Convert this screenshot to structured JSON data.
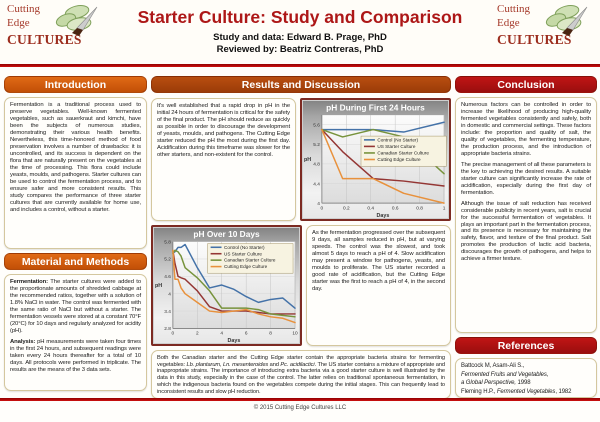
{
  "header": {
    "title": "Starter Culture: Study and Comparison",
    "subtitle1": "Study and data: Edward B. Prage, PhD",
    "subtitle2": "Reviewed by: Beatriz Contreras, PhD",
    "logo": {
      "word1": "Cutting",
      "word2": "Edge",
      "word3": "CULTURES"
    }
  },
  "left": {
    "intro_header": "Introduction",
    "intro_text": "Fermentation is a traditional process used to preserve vegetables. Well-known fermented vegetables, such as sauerkraut and kimchi, have been the subjects of numerous studies, demonstrating their various health benefits. Nevertheless, this time-honored method of food preservation involves a number of drawbacks: it is uncontrolled, and its success is dependent on the flora that are naturally present on the vegetables at the time of processing. This flora could include yeasts, moulds, and pathogens. Starter cultures can be used to control the fermentation process, and to ensure safer and more consistent results. This study compares the performance of three starter cultures that are currently available for home use, and includes a control, without a starter.",
    "methods_header": "Material and Methods",
    "fermentation_label": "Fermentation:",
    "fermentation_text": " The starter cultures were added to the proportionate amounts of shredded cabbage at the recommended ratios, together with a solution of 1.8% NaCl in water. The control was fermented with the same ratio of NaCl but without a starter. The fermentation vessels were stored at a constant 70°F (20°C) for 10 days and regularly analyzed for acidity (pH).",
    "analysis_label": "Analysis:",
    "analysis_text": " pH measurements were taken four times in the first 24 hours, and subsequent readings were taken every 24 hours thereafter for a total of 10 days. All protocols were performed in triplicate. The results are the means of the 3 data sets."
  },
  "middle": {
    "header": "Results and Discussion",
    "box1": "It's well established that a rapid drop in pH in the initial 24 hours of fermentation is critical for the safety of the final product. The pH should reduce as quickly as possible in order to discourage the development of yeasts, moulds, and pathogens. The Cutting Edge starter reduced the pH the most during the first day. Acidification during this timeframe was slower for the other starters, and non-existent for the control.",
    "box2": "As the fermentation progressed over the subsequent 9 days, all samples reduced in pH, but at varying speeds. The control was the slowest, and took almost 5 days to reach a pH of 4. Slow acidification may present a window for pathogens, yeasts, and moulds to proliferate. The US starter recorded a good rate of acidification, but the Cutting Edge starter was the first to reach a pH of 4, in the second day.",
    "bottom": {
      "p1": "Both the Canadian starter and the Cutting Edge starter contain the appropriate bacteria strains for fermenting vegetables: ",
      "i1": "Lb. plantarum, Ln. mesenteroides",
      "p2": " and ",
      "i2": "Pc. acidilactici",
      "p3": ". The US starter contains a mixture of appropriate and inappropriate strains. The importance of introducing extra bacteria via a good starter culture is well illustrated by the data in this study, especially in the case of the control. The latter relies on traditional spontaneous fermentation, in which the indigenous bacteria found on the vegetables compete during the initial stages. This can frequently lead to inconsistent results and slow pH reduction."
    }
  },
  "right": {
    "conclusion_header": "Conclusion",
    "conclusion_p1": "Numerous factors can be controlled in order to increase the likelihood of producing high-quality fermented vegetables consistently and safely, both in domestic and commercial settings. These factors include: the proportion and quality of salt, the quality of vegetables, the fermenting temperature, the production process, and the introduction of appropriate bacteria strains.",
    "conclusion_p2": "The precise management of all these parameters is the key to achieving the desired results. A suitable starter culture can significantly increase the rate of acidification, especially during the first day of fermentation.",
    "conclusion_p3": "Although the issue of salt reduction has received considerable publicity in recent years, salt is crucial for the successful fermentation of vegetables. It plays an important part in the fermentation process, and its presence is necessary for maintaining the safety, flavor, and texture of the final product. Salt promotes the production of lactic acid bacteria, discourages the growth of pathogens, and helps to achieve a firmer texture.",
    "references_header": "References",
    "ref1_line1": "Battcock M, Asam-Ali S.,",
    "ref1_line2": "Fermented Fruits and Vegetables,",
    "ref1_line3_italic": "a Global Perspective,",
    "ref1_line3_rest": " 1998",
    "ref2_pre": "Fleming H.P., ",
    "ref2_italic": "Fermented Vegetables",
    "ref2_post": ", 1982"
  },
  "footer": {
    "copyright": "© 2015 Cutting Edge Cultures LLC"
  },
  "colors": {
    "title_red": "#ad1717",
    "section_orange": "#c8520c",
    "section_rust": "#a84410",
    "section_darkred": "#b01212",
    "rule_red": "#b40000",
    "box_border_tan": "#d4c79e",
    "chart_border_maroon": "#7c2a22",
    "legend_bg": "#f7f3e1"
  },
  "chart_data": [
    {
      "type": "line",
      "title": "pH During First 24 Hours",
      "xlabel": "Days",
      "ylabel": "pH",
      "x": [
        0,
        0.17,
        0.42,
        0.67,
        1
      ],
      "xticks": [
        0,
        0.2,
        0.4,
        0.6,
        0.8,
        1
      ],
      "yticks": [
        4,
        4.4,
        4.8,
        5.2,
        5.6
      ],
      "ylim": [
        4,
        5.8
      ],
      "grid": true,
      "legend_pos": "center-right",
      "series": [
        {
          "name": "Control (No Starter)",
          "color": "#4472a8",
          "values": [
            5.5,
            5.5,
            5.5,
            5.45,
            5.65
          ]
        },
        {
          "name": "US Starter Culture",
          "color": "#943634",
          "values": [
            5.5,
            5.05,
            4.5,
            4.45,
            4.35
          ]
        },
        {
          "name": "Canadian Starter Culture",
          "color": "#77933c",
          "values": [
            5.5,
            5.35,
            5.5,
            5.35,
            4.6
          ]
        },
        {
          "name": "Cutting Edge Culture",
          "color": "#e8913c",
          "values": [
            5.5,
            4.5,
            4.5,
            4.2,
            4.0
          ]
        }
      ]
    },
    {
      "type": "line",
      "title": "pH Over 10 Days",
      "xlabel": "Days",
      "ylabel": "pH",
      "x": [
        0,
        0.17,
        0.42,
        0.67,
        1,
        2,
        3,
        4,
        5,
        6,
        7,
        8,
        9,
        10
      ],
      "xticks": [
        0,
        2,
        4,
        6,
        8,
        10
      ],
      "yticks": [
        2.8,
        3.4,
        4,
        4.6,
        5.2,
        5.8
      ],
      "ylim": [
        2.8,
        5.8
      ],
      "grid": true,
      "legend_pos": "top-right",
      "series": [
        {
          "name": "Control (No Starter)",
          "color": "#4472a8",
          "values": [
            5.4,
            5.45,
            5.6,
            5.6,
            5.7,
            4.9,
            4.2,
            4.3,
            4.15,
            3.9,
            3.7,
            3.8,
            3.85,
            3.5
          ]
        },
        {
          "name": "US Starter Culture",
          "color": "#943634",
          "values": [
            5.5,
            5.05,
            4.6,
            4.55,
            4.5,
            4.1,
            3.55,
            3.4,
            3.4,
            3.4,
            3.35,
            3.3,
            3.3,
            3.3
          ]
        },
        {
          "name": "Canadian Starter Culture",
          "color": "#77933c",
          "values": [
            5.4,
            5.5,
            5.45,
            5.3,
            4.9,
            4.55,
            4.1,
            3.5,
            3.5,
            3.5,
            3.45,
            3.3,
            3.25,
            3.2
          ]
        },
        {
          "name": "Cutting Edge Culture",
          "color": "#e8913c",
          "values": [
            5.5,
            4.5,
            4.5,
            4.2,
            4.0,
            3.7,
            3.4,
            3.35,
            3.4,
            3.45,
            3.3,
            3.2,
            3.15,
            3.0
          ]
        }
      ]
    }
  ]
}
